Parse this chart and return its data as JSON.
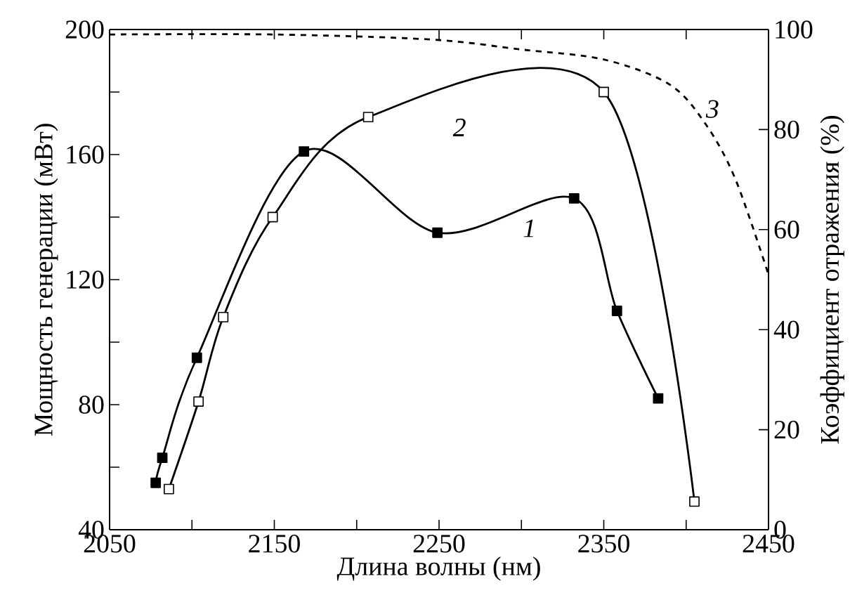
{
  "chart_data": {
    "type": "line",
    "xlabel": "Длина волны (нм)",
    "ylabel": "Мощность генерации (мВт)",
    "y2label": "Коэффициент отражения (%)",
    "xlim": [
      2050,
      2450
    ],
    "xticks": [
      2050,
      {
        "value": 2100,
        "label": null
      },
      2150,
      {
        "value": 2200,
        "label": null
      },
      2250,
      {
        "value": 2300,
        "label": null
      },
      2350,
      {
        "value": 2400,
        "label": null
      },
      2450
    ],
    "ylim": [
      40,
      200
    ],
    "yticks": [
      40,
      {
        "value": 60,
        "label": null
      },
      80,
      {
        "value": 100,
        "label": null
      },
      120,
      {
        "value": 140,
        "label": null
      },
      160,
      {
        "value": 180,
        "label": null
      },
      200
    ],
    "y2lim": [
      0,
      100
    ],
    "y2ticks": [
      0,
      20,
      40,
      60,
      80,
      100
    ],
    "grid": false,
    "series": [
      {
        "name": "1",
        "color": "#000000",
        "marker": "square",
        "line_style": "solid",
        "x": [
          2078,
          2082,
          2103,
          2168,
          2249,
          2332,
          2358,
          2383
        ],
        "values": [
          55,
          63,
          95,
          161,
          135,
          146,
          110,
          82
        ]
      },
      {
        "name": "2",
        "color": "#000000",
        "marker": "square",
        "line_style": "solid",
        "x": [
          2086,
          2104,
          2119,
          2149,
          2207,
          2350,
          2405
        ],
        "values": [
          53,
          81,
          108,
          140,
          172,
          180,
          49
        ]
      },
      {
        "name": "3",
        "color": "#000000",
        "marker": "none",
        "line_style": "dashed",
        "axis": "y2",
        "x": [
          2050,
          2150,
          2245,
          2300,
          2350,
          2390,
          2412,
          2430,
          2450
        ],
        "values": [
          99,
          99,
          98,
          96,
          94,
          89,
          81,
          70,
          51
        ]
      }
    ]
  }
}
